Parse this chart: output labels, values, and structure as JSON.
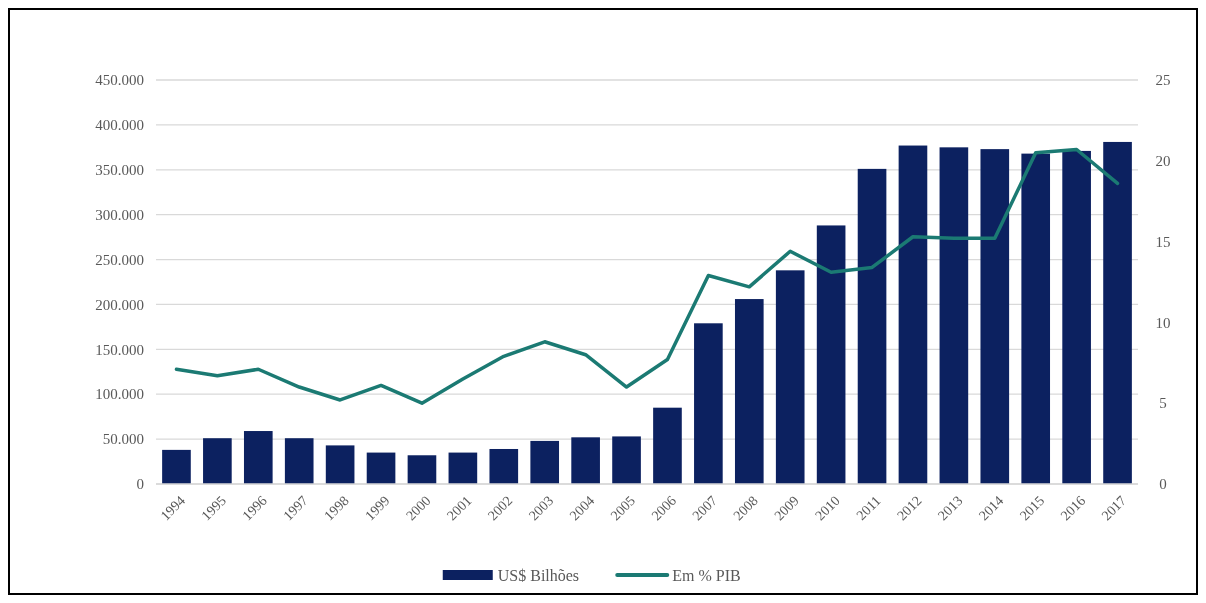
{
  "chart_data": {
    "type": "bar",
    "categories": [
      "1994",
      "1995",
      "1996",
      "1997",
      "1998",
      "1999",
      "2000",
      "2001",
      "2002",
      "2003",
      "2004",
      "2005",
      "2006",
      "2007",
      "2008",
      "2009",
      "2010",
      "2011",
      "2012",
      "2013",
      "2014",
      "2015",
      "2016",
      "2017"
    ],
    "series": [
      {
        "name": "US$ Bilhões",
        "color": "#0c2160",
        "values": [
          38000,
          51000,
          59000,
          51000,
          43000,
          35000,
          32000,
          35000,
          39000,
          48000,
          52000,
          53000,
          85000,
          179000,
          206000,
          238000,
          288000,
          351000,
          377000,
          375000,
          373000,
          368000,
          371000,
          381000
        ]
      },
      {
        "name": "Em % PIB",
        "type": "line",
        "axis": "y2",
        "color": "#1b7a73",
        "values": [
          7.1,
          6.7,
          7.1,
          6.0,
          5.2,
          6.1,
          5.0,
          6.5,
          7.9,
          8.8,
          8.0,
          6.0,
          7.7,
          12.9,
          12.2,
          14.4,
          13.1,
          13.4,
          15.3,
          15.2,
          15.2,
          20.5,
          20.7,
          18.6
        ]
      }
    ],
    "ylim": [
      0,
      450000
    ],
    "yticks": [
      {
        "value": 0,
        "label": "0"
      },
      {
        "value": 50000,
        "label": "50.000"
      },
      {
        "value": 100000,
        "label": "100.000"
      },
      {
        "value": 150000,
        "label": "150.000"
      },
      {
        "value": 200000,
        "label": "200.000"
      },
      {
        "value": 250000,
        "label": "250.000"
      },
      {
        "value": 300000,
        "label": "300.000"
      },
      {
        "value": 350000,
        "label": "350.000"
      },
      {
        "value": 400000,
        "label": "400.000"
      },
      {
        "value": 450000,
        "label": "450.000"
      }
    ],
    "y2lim": [
      0,
      25
    ],
    "y2ticks": [
      0,
      5,
      10,
      15,
      20,
      25
    ],
    "grid": "y",
    "legend": "bottom",
    "marker": "none",
    "line_style": "solid"
  }
}
